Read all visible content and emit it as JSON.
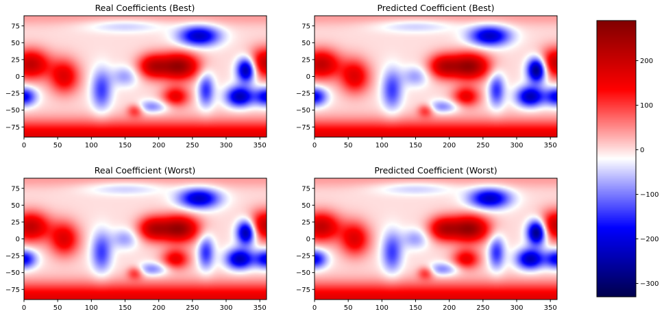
{
  "chart_data": {
    "type": "heatmap",
    "panels": [
      {
        "title": "Real Coefficients (Best)",
        "variant": 0
      },
      {
        "title": "Predicted Coefficient (Best)",
        "variant": 1
      },
      {
        "title": "Real Coefficient (Worst)",
        "variant": 2
      },
      {
        "title": "Predicted Coefficient (Worst)",
        "variant": 3
      }
    ],
    "x_axis": {
      "range": [
        0,
        360
      ],
      "ticks": [
        0,
        50,
        100,
        150,
        200,
        250,
        300,
        350
      ],
      "xlabel": ""
    },
    "y_axis": {
      "range": [
        -90,
        90
      ],
      "ticks": [
        75,
        50,
        25,
        0,
        -25,
        -50,
        -75
      ],
      "ylabel": ""
    },
    "colorbar": {
      "colormap": "seismic",
      "range": [
        -330,
        290
      ],
      "ticks": [
        200,
        100,
        0,
        -100,
        -200,
        -300
      ],
      "tick_labels": [
        "200",
        "100",
        "0",
        "−100",
        "−200",
        "−300"
      ]
    },
    "features": [
      {
        "lon": 10,
        "lat": 18,
        "amp": 210,
        "sig_lon": 28,
        "sig_lat": 22
      },
      {
        "lon": 60,
        "lat": 0,
        "amp": 170,
        "sig_lon": 22,
        "sig_lat": 25
      },
      {
        "lon": 360,
        "lat": 20,
        "amp": 210,
        "sig_lon": 28,
        "sig_lat": 22
      },
      {
        "lon": 0,
        "lat": -30,
        "amp": -190,
        "sig_lon": 18,
        "sig_lat": 14
      },
      {
        "lon": 360,
        "lat": -30,
        "amp": -190,
        "sig_lon": 18,
        "sig_lat": 14
      },
      {
        "lon": 190,
        "lat": 15,
        "amp": 180,
        "sig_lon": 22,
        "sig_lat": 18
      },
      {
        "lon": 230,
        "lat": 15,
        "amp": 260,
        "sig_lon": 30,
        "sig_lat": 20
      },
      {
        "lon": 225,
        "lat": -30,
        "amp": 160,
        "sig_lon": 20,
        "sig_lat": 15
      },
      {
        "lon": 165,
        "lat": -50,
        "amp": 110,
        "sig_lon": 12,
        "sig_lat": 10
      },
      {
        "lon": 115,
        "lat": -20,
        "amp": -140,
        "sig_lon": 15,
        "sig_lat": 30
      },
      {
        "lon": 150,
        "lat": 0,
        "amp": -80,
        "sig_lon": 20,
        "sig_lat": 15
      },
      {
        "lon": 190,
        "lat": -45,
        "amp": -100,
        "sig_lon": 25,
        "sig_lat": 10
      },
      {
        "lon": 260,
        "lat": 60,
        "amp": -230,
        "sig_lon": 30,
        "sig_lat": 15
      },
      {
        "lon": 330,
        "lat": 10,
        "amp": -290,
        "sig_lon": 14,
        "sig_lat": 18
      },
      {
        "lon": 320,
        "lat": -30,
        "amp": -240,
        "sig_lon": 20,
        "sig_lat": 15
      },
      {
        "lon": 270,
        "lat": -20,
        "amp": -150,
        "sig_lon": 12,
        "sig_lat": 25
      },
      {
        "lon": 150,
        "lat": 75,
        "amp": -60,
        "sig_lon": 60,
        "sig_lat": 10
      }
    ],
    "background": {
      "south_amp": 170,
      "north_amp": 40
    }
  }
}
